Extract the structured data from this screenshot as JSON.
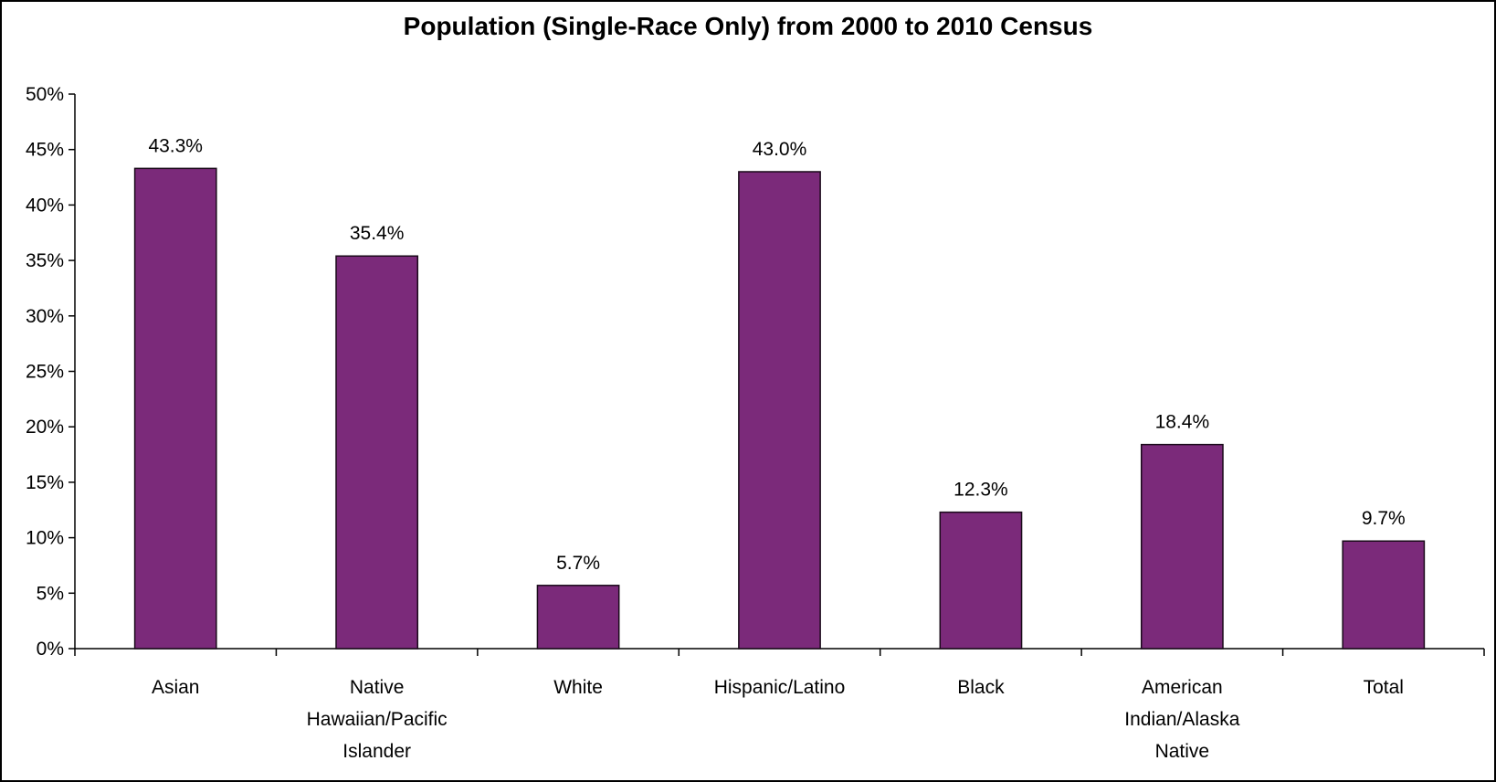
{
  "chart_data": {
    "type": "bar",
    "title": "Population (Single-Race Only) from 2000 to 2010 Census",
    "xlabel": "",
    "ylabel": "",
    "categories": [
      [
        "Asian"
      ],
      [
        "Native",
        "Hawaiian/Pacific",
        "Islander"
      ],
      [
        "White"
      ],
      [
        "Hispanic/Latino"
      ],
      [
        "Black"
      ],
      [
        "American",
        "Indian/Alaska",
        "Native"
      ],
      [
        "Total"
      ]
    ],
    "values": [
      43.3,
      35.4,
      5.7,
      43.0,
      12.3,
      18.4,
      9.7
    ],
    "data_labels": [
      "43.3%",
      "35.4%",
      "5.7%",
      "43.0%",
      "12.3%",
      "18.4%",
      "9.7%"
    ],
    "ylim": [
      0,
      50
    ],
    "yticks": [
      0,
      5,
      10,
      15,
      20,
      25,
      30,
      35,
      40,
      45,
      50
    ],
    "ytick_labels": [
      "0%",
      "5%",
      "10%",
      "15%",
      "20%",
      "25%",
      "30%",
      "35%",
      "40%",
      "45%",
      "50%"
    ],
    "grid": false,
    "legend": "none",
    "bar_color": "#7b2a7a",
    "bar_edge_color": "#1a0a1a"
  }
}
